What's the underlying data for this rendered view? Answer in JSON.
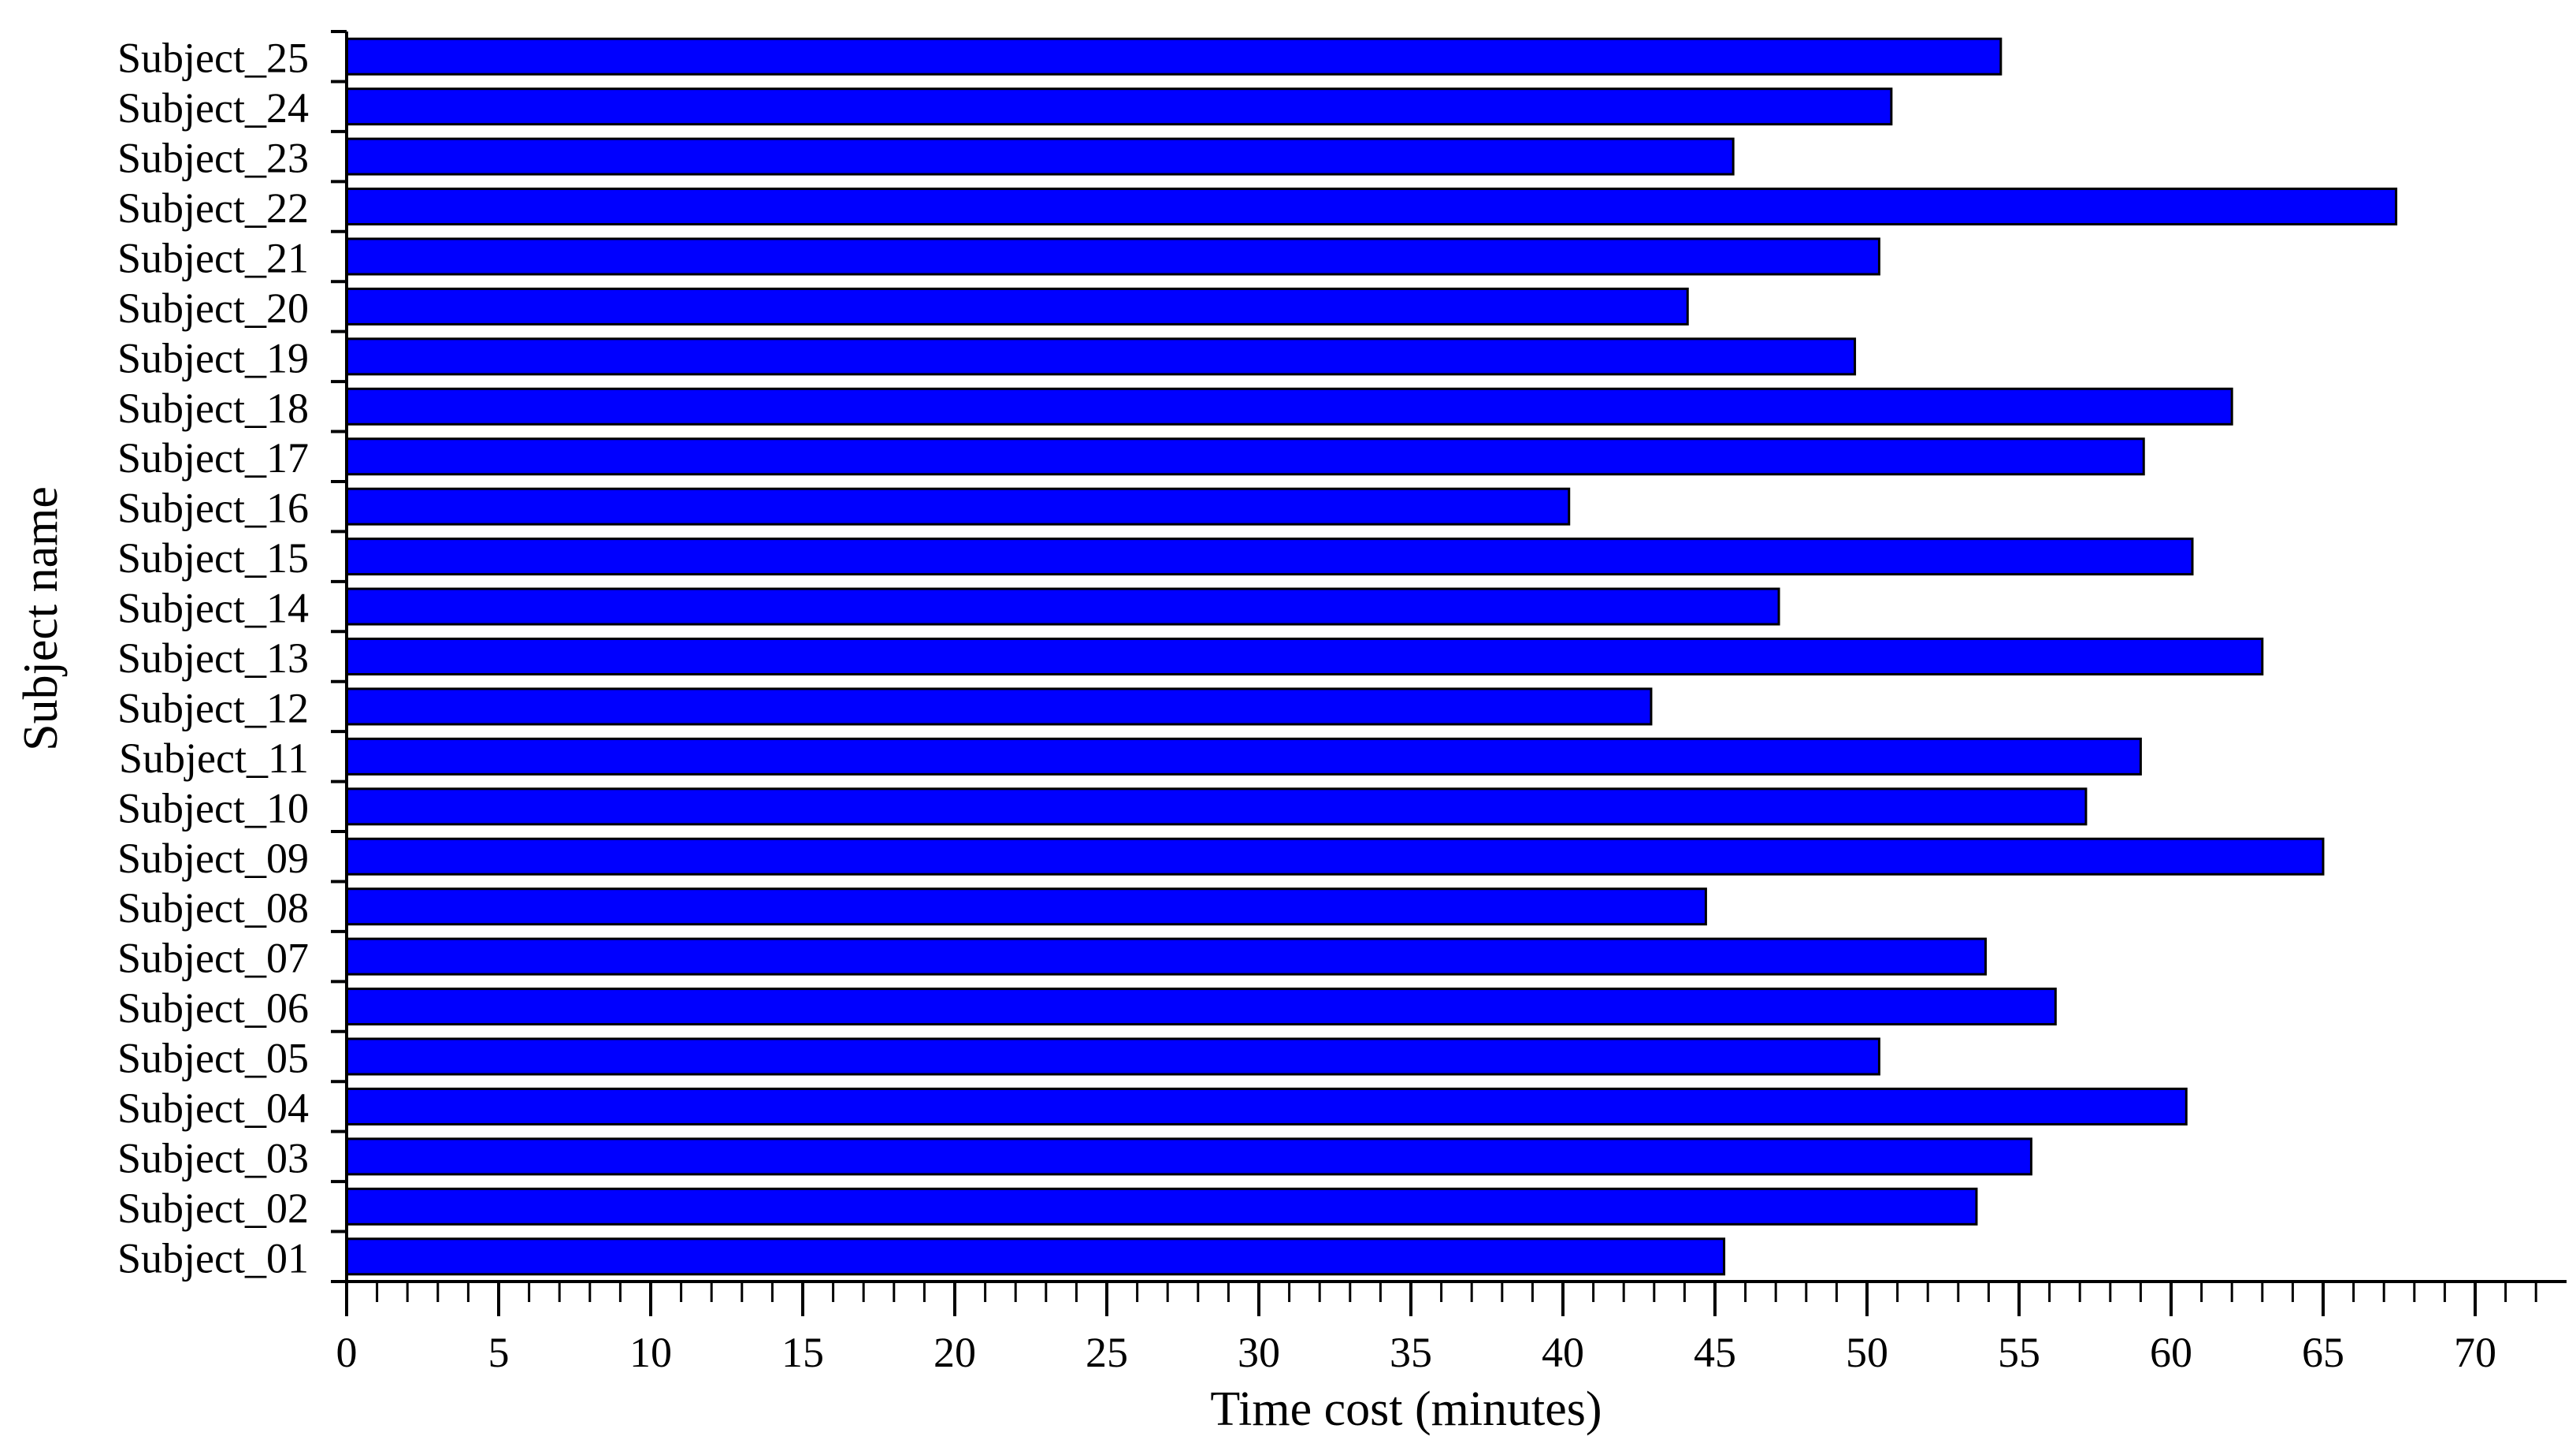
{
  "chart_data": {
    "type": "bar",
    "orientation": "horizontal",
    "title": "",
    "xlabel": "Time cost (minutes)",
    "ylabel": "Subject name",
    "xlim": [
      0,
      72.5
    ],
    "x_ticks": [
      0,
      5,
      10,
      15,
      20,
      25,
      30,
      35,
      40,
      45,
      50,
      55,
      60,
      65,
      70
    ],
    "grid": false,
    "legend": "none",
    "bar_color": "#0000ff",
    "categories": [
      "Subject_01",
      "Subject_02",
      "Subject_03",
      "Subject_04",
      "Subject_05",
      "Subject_06",
      "Subject_07",
      "Subject_08",
      "Subject_09",
      "Subject_10",
      "Subject_11",
      "Subject_12",
      "Subject_13",
      "Subject_14",
      "Subject_15",
      "Subject_16",
      "Subject_17",
      "Subject_18",
      "Subject_19",
      "Subject_20",
      "Subject_21",
      "Subject_22",
      "Subject_23",
      "Subject_24",
      "Subject_25"
    ],
    "values": [
      45.3,
      53.6,
      55.4,
      60.5,
      50.4,
      56.2,
      53.9,
      44.7,
      65.0,
      57.2,
      59.0,
      42.9,
      63.0,
      47.1,
      60.7,
      40.2,
      59.1,
      62.0,
      49.6,
      44.1,
      50.4,
      67.4,
      45.6,
      50.8,
      54.4
    ]
  }
}
